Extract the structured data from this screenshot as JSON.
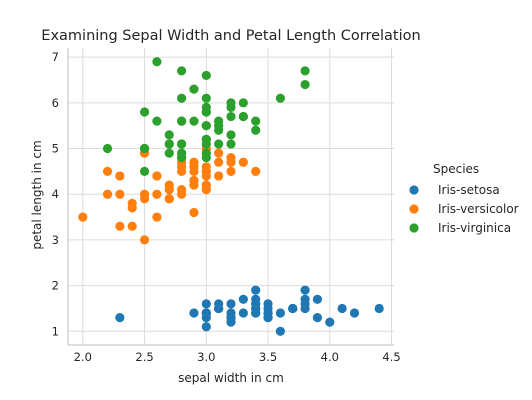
{
  "chart_data": {
    "type": "scatter",
    "title": "Examining Sepal Width and Petal Length Correlation",
    "xlabel": "sepal width in cm",
    "ylabel": "petal length in cm",
    "xlim": [
      1.88,
      4.52
    ],
    "ylim": [
      0.7,
      7.2
    ],
    "xticks": [
      "2.0",
      "2.5",
      "3.0",
      "3.5",
      "4.0",
      "4.5"
    ],
    "yticks": [
      "1",
      "2",
      "3",
      "4",
      "5",
      "6",
      "7"
    ],
    "grid": true,
    "legend": {
      "title": "Species",
      "position": "right"
    },
    "series": [
      {
        "name": "Iris-setosa",
        "color": "#1f77b4",
        "points": [
          [
            3.5,
            1.4
          ],
          [
            3.0,
            1.4
          ],
          [
            3.2,
            1.3
          ],
          [
            3.1,
            1.5
          ],
          [
            3.6,
            1.4
          ],
          [
            3.9,
            1.7
          ],
          [
            3.4,
            1.4
          ],
          [
            3.4,
            1.5
          ],
          [
            2.9,
            1.4
          ],
          [
            3.1,
            1.5
          ],
          [
            3.7,
            1.5
          ],
          [
            3.4,
            1.6
          ],
          [
            3.0,
            1.4
          ],
          [
            3.0,
            1.1
          ],
          [
            4.0,
            1.2
          ],
          [
            4.4,
            1.5
          ],
          [
            3.9,
            1.3
          ],
          [
            3.5,
            1.4
          ],
          [
            3.8,
            1.7
          ],
          [
            3.8,
            1.5
          ],
          [
            3.4,
            1.7
          ],
          [
            3.7,
            1.5
          ],
          [
            3.6,
            1.0
          ],
          [
            3.3,
            1.7
          ],
          [
            3.4,
            1.9
          ],
          [
            3.0,
            1.6
          ],
          [
            3.4,
            1.6
          ],
          [
            3.5,
            1.5
          ],
          [
            3.4,
            1.4
          ],
          [
            3.2,
            1.6
          ],
          [
            3.1,
            1.6
          ],
          [
            3.4,
            1.5
          ],
          [
            4.1,
            1.5
          ],
          [
            4.2,
            1.4
          ],
          [
            3.1,
            1.5
          ],
          [
            3.2,
            1.2
          ],
          [
            3.5,
            1.3
          ],
          [
            3.1,
            1.5
          ],
          [
            3.0,
            1.3
          ],
          [
            3.4,
            1.5
          ],
          [
            3.5,
            1.3
          ],
          [
            2.3,
            1.3
          ],
          [
            3.2,
            1.3
          ],
          [
            3.5,
            1.6
          ],
          [
            3.8,
            1.9
          ],
          [
            3.0,
            1.4
          ],
          [
            3.8,
            1.6
          ],
          [
            3.2,
            1.4
          ],
          [
            3.7,
            1.5
          ],
          [
            3.3,
            1.4
          ]
        ]
      },
      {
        "name": "Iris-versicolor",
        "color": "#ff7f0e",
        "points": [
          [
            3.2,
            4.7
          ],
          [
            3.2,
            4.5
          ],
          [
            3.1,
            4.9
          ],
          [
            2.3,
            4.0
          ],
          [
            2.8,
            4.6
          ],
          [
            2.8,
            4.5
          ],
          [
            3.3,
            4.7
          ],
          [
            2.4,
            3.3
          ],
          [
            2.9,
            4.6
          ],
          [
            2.7,
            3.9
          ],
          [
            2.0,
            3.5
          ],
          [
            3.0,
            4.2
          ],
          [
            2.2,
            4.0
          ],
          [
            2.9,
            4.7
          ],
          [
            2.9,
            3.6
          ],
          [
            3.1,
            4.4
          ],
          [
            3.0,
            4.5
          ],
          [
            2.7,
            4.1
          ],
          [
            2.2,
            4.5
          ],
          [
            2.5,
            3.9
          ],
          [
            3.2,
            4.8
          ],
          [
            2.8,
            4.0
          ],
          [
            2.5,
            4.9
          ],
          [
            2.8,
            4.7
          ],
          [
            2.9,
            4.3
          ],
          [
            3.0,
            4.4
          ],
          [
            2.8,
            4.8
          ],
          [
            3.0,
            5.0
          ],
          [
            2.9,
            4.5
          ],
          [
            2.6,
            3.5
          ],
          [
            2.4,
            3.8
          ],
          [
            2.4,
            3.7
          ],
          [
            2.7,
            3.9
          ],
          [
            2.7,
            5.1
          ],
          [
            3.0,
            4.5
          ],
          [
            3.4,
            4.5
          ],
          [
            3.1,
            4.7
          ],
          [
            2.3,
            4.4
          ],
          [
            3.0,
            4.1
          ],
          [
            2.5,
            4.0
          ],
          [
            2.6,
            4.4
          ],
          [
            3.0,
            4.6
          ],
          [
            2.6,
            4.0
          ],
          [
            2.3,
            3.3
          ],
          [
            2.7,
            4.2
          ],
          [
            3.0,
            4.2
          ],
          [
            2.9,
            4.2
          ],
          [
            2.9,
            4.3
          ],
          [
            2.5,
            3.0
          ],
          [
            2.8,
            4.1
          ]
        ]
      },
      {
        "name": "Iris-virginica",
        "color": "#2ca02c",
        "points": [
          [
            3.3,
            6.0
          ],
          [
            2.7,
            5.1
          ],
          [
            3.0,
            5.9
          ],
          [
            2.9,
            5.6
          ],
          [
            3.0,
            5.8
          ],
          [
            3.0,
            6.6
          ],
          [
            2.5,
            4.5
          ],
          [
            2.9,
            6.3
          ],
          [
            2.5,
            5.8
          ],
          [
            3.6,
            6.1
          ],
          [
            3.2,
            5.1
          ],
          [
            2.7,
            5.3
          ],
          [
            3.0,
            5.5
          ],
          [
            2.5,
            5.0
          ],
          [
            2.8,
            5.1
          ],
          [
            3.2,
            5.3
          ],
          [
            3.0,
            5.5
          ],
          [
            3.8,
            6.7
          ],
          [
            2.6,
            6.9
          ],
          [
            2.2,
            5.0
          ],
          [
            3.2,
            5.7
          ],
          [
            2.8,
            4.9
          ],
          [
            2.8,
            6.7
          ],
          [
            2.7,
            4.9
          ],
          [
            3.3,
            5.7
          ],
          [
            3.2,
            6.0
          ],
          [
            2.8,
            4.8
          ],
          [
            3.0,
            4.9
          ],
          [
            2.8,
            5.6
          ],
          [
            3.0,
            5.8
          ],
          [
            2.8,
            6.1
          ],
          [
            3.8,
            6.4
          ],
          [
            2.8,
            5.6
          ],
          [
            2.8,
            5.1
          ],
          [
            2.6,
            5.6
          ],
          [
            3.0,
            6.1
          ],
          [
            3.4,
            5.6
          ],
          [
            3.1,
            5.5
          ],
          [
            3.0,
            4.8
          ],
          [
            3.1,
            5.4
          ],
          [
            3.1,
            5.6
          ],
          [
            3.1,
            5.1
          ],
          [
            2.7,
            5.1
          ],
          [
            3.2,
            5.9
          ],
          [
            3.3,
            5.7
          ],
          [
            3.0,
            5.2
          ],
          [
            2.5,
            5.0
          ],
          [
            3.0,
            5.2
          ],
          [
            3.4,
            5.4
          ],
          [
            3.0,
            5.1
          ]
        ]
      }
    ]
  }
}
